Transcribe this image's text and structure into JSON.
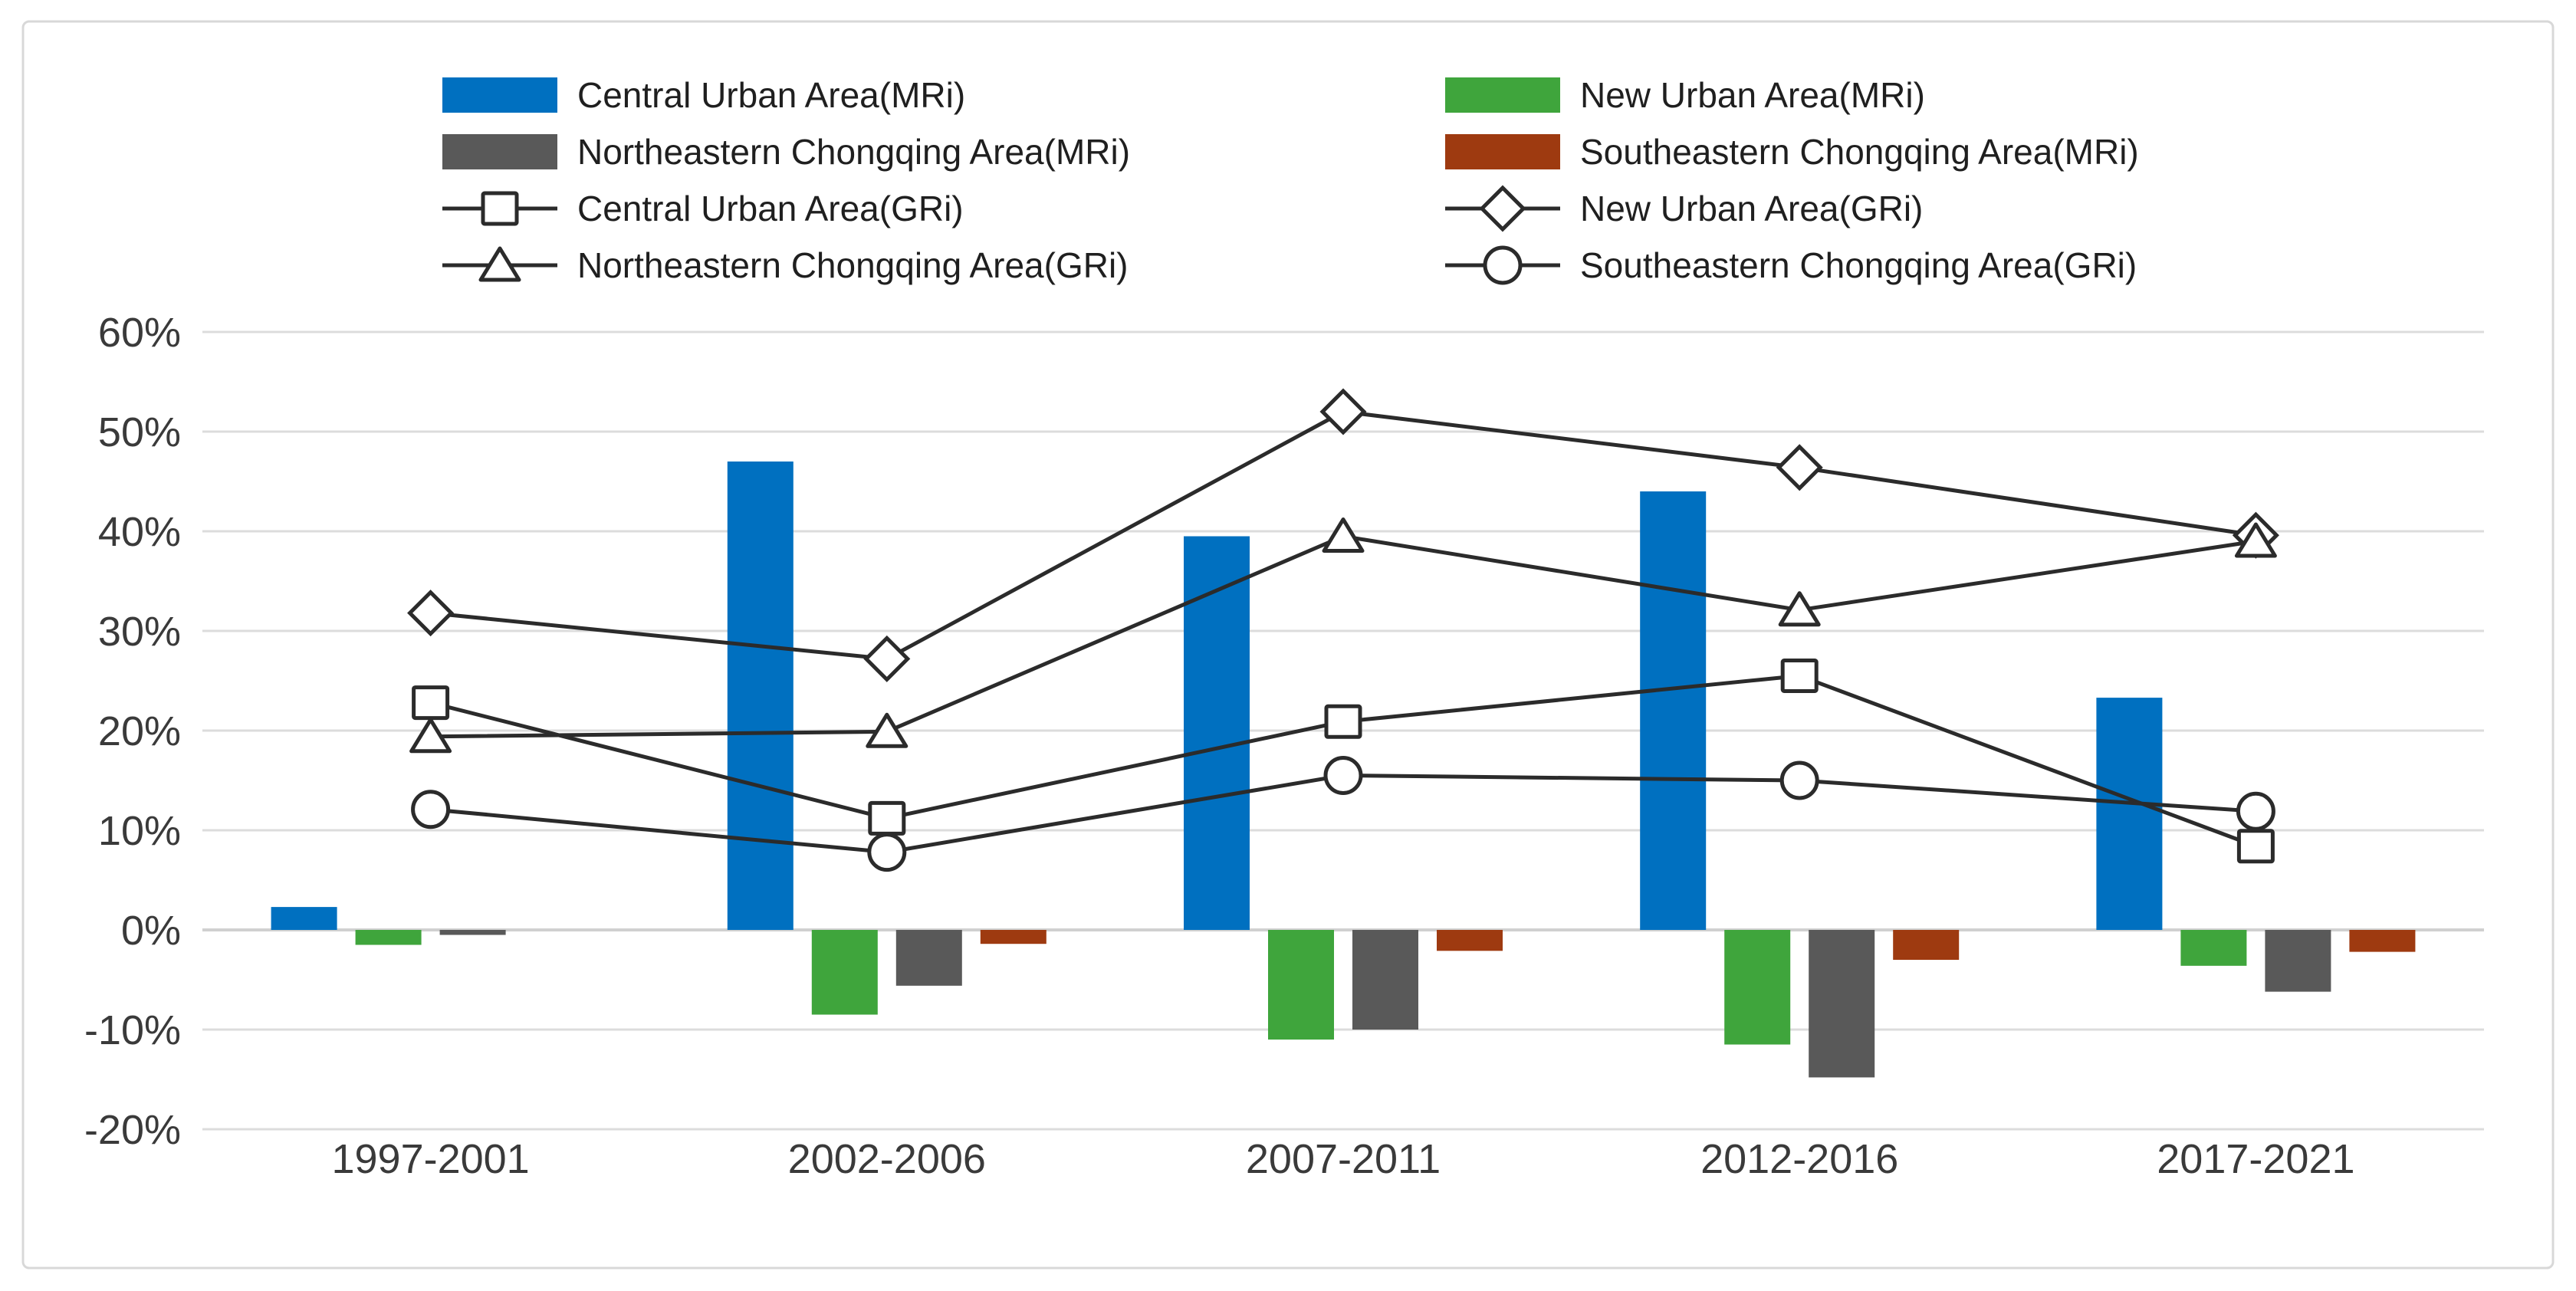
{
  "chart_data": {
    "type": "bar+line",
    "categories": [
      "1997-2001",
      "2002-2006",
      "2007-2011",
      "2012-2016",
      "2017-2021"
    ],
    "bar_series": [
      {
        "name": "Central Urban Area(MRi)",
        "color": "#0070C0",
        "values": [
          2.3,
          47.0,
          39.5,
          44.0,
          23.3
        ]
      },
      {
        "name": "New Urban Area(MRi)",
        "color": "#3FA53C",
        "values": [
          -1.5,
          -8.5,
          -11.0,
          -11.5,
          -3.6
        ]
      },
      {
        "name": "Northeastern Chongqing Area(MRi)",
        "color": "#595959",
        "values": [
          -0.5,
          -5.6,
          -10.0,
          -14.8,
          -6.2
        ]
      },
      {
        "name": "Southeastern Chongqing Area(MRi)",
        "color": "#9E3A10",
        "values": [
          0,
          -1.4,
          -2.1,
          -3.0,
          -2.2
        ]
      }
    ],
    "line_series": [
      {
        "name": "Central Urban Area(GRi)",
        "marker": "square",
        "values": [
          22.8,
          11.2,
          20.9,
          25.5,
          8.4
        ]
      },
      {
        "name": "New Urban Area(GRi)",
        "marker": "diamond",
        "values": [
          31.8,
          27.2,
          52.0,
          46.4,
          39.6
        ]
      },
      {
        "name": "Northeastern Chongqing Area(GRi)",
        "marker": "triangle",
        "values": [
          19.4,
          19.9,
          39.5,
          32.1,
          39.0
        ]
      },
      {
        "name": "Southeastern Chongqing Area(GRi)",
        "marker": "circle",
        "values": [
          12.1,
          7.8,
          15.5,
          15.0,
          11.9
        ]
      }
    ],
    "y_axis": {
      "min": -20,
      "max": 60,
      "ticks": [
        {
          "value": 60,
          "label": "60%"
        },
        {
          "value": 50,
          "label": "50%"
        },
        {
          "value": 40,
          "label": "40%"
        },
        {
          "value": 30,
          "label": "30%"
        },
        {
          "value": 20,
          "label": "20%"
        },
        {
          "value": 10,
          "label": "10%"
        },
        {
          "value": 0,
          "label": "0%"
        },
        {
          "value": -10,
          "label": "-10%"
        },
        {
          "value": -20,
          "label": "-20%"
        }
      ],
      "grid": true
    },
    "legend_position": "top",
    "line_color": "#2B2B2B",
    "marker_fill": "#FFFFFF",
    "grid_color": "#DCDCDC",
    "zero_line_color": "#D0D0D0",
    "axis_text_color": "#3A3A3A",
    "legend_text_color": "#1F1F1F",
    "border_color": "#D8D8D8",
    "background_color": "#FFFFFF"
  }
}
